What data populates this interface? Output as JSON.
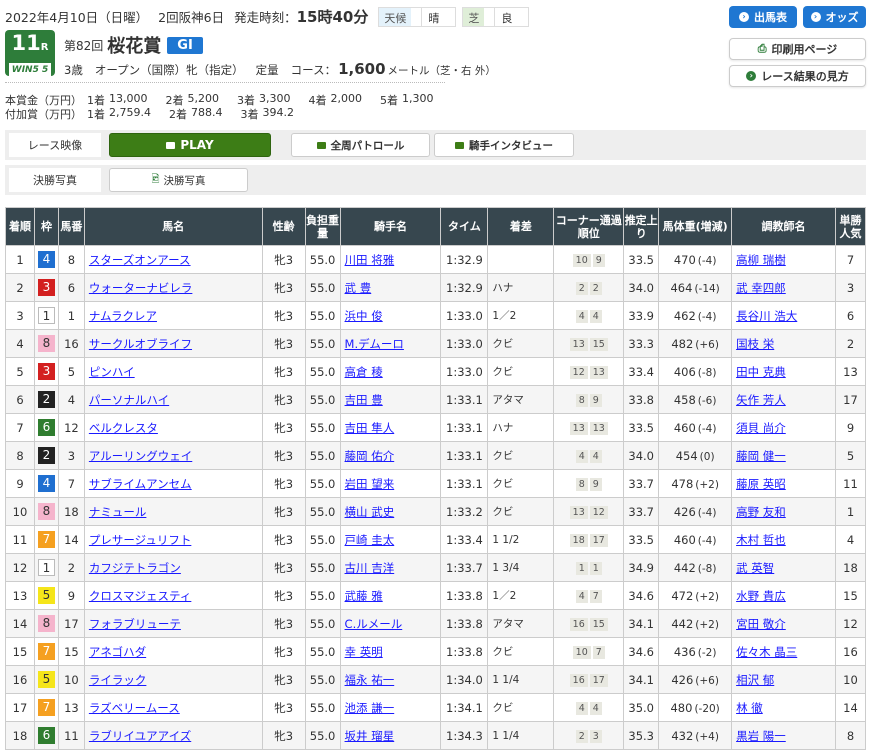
{
  "header": {
    "date": "2022年4月10日（日曜）",
    "meeting": "2回阪神6日",
    "start_label": "発走時刻：",
    "start_time": "15時40分",
    "weather_label": "天候",
    "weather": "晴",
    "track_label": "芝",
    "condition": "良"
  },
  "race": {
    "number": "11",
    "number_suffix": "R",
    "win5": "WIN5 5",
    "kai": "第82回",
    "name": "桜花賞",
    "grade": "GI",
    "age": "3歳",
    "class": "オープン（国際）牝（指定）",
    "weight_rule": "定量",
    "course_label": "コース：",
    "distance": "1,600",
    "distance_unit": "メートル（芝・右 外）"
  },
  "prize": {
    "main_label": "本賞金（万円）",
    "main": [
      [
        "1着",
        "13,000"
      ],
      [
        "2着",
        "5,200"
      ],
      [
        "3着",
        "3,300"
      ],
      [
        "4着",
        "2,000"
      ],
      [
        "5着",
        "1,300"
      ]
    ],
    "extra_label": "付加賞（万円）",
    "extra": [
      [
        "1着",
        "2,759.4"
      ],
      [
        "2着",
        "788.4"
      ],
      [
        "3着",
        "394.2"
      ]
    ]
  },
  "buttons": {
    "entries": "出馬表",
    "odds": "オッズ",
    "print": "印刷用ページ",
    "guide": "レース結果の見方"
  },
  "media": {
    "video_label": "レース映像",
    "play": "PLAY",
    "patrol": "全周パトロール",
    "interview": "騎手インタビュー",
    "photo_label": "決勝写真",
    "photo": "決勝写真"
  },
  "waku_colors": {
    "1": "#ffffff",
    "2": "#222222",
    "3": "#d32020",
    "4": "#1f6fd0",
    "5": "#f5e51a",
    "6": "#2f7d2f",
    "7": "#f5a020",
    "8": "#f5b4cc"
  },
  "columns": [
    "着順",
    "枠",
    "馬番",
    "馬名",
    "性齢",
    "負担重量",
    "騎手名",
    "タイム",
    "着差",
    "コーナー通過順位",
    "推定上り",
    "馬体重(増減)",
    "調教師名",
    "単勝人気"
  ],
  "rows": [
    [
      "1",
      "4",
      "8",
      "スターズオンアース",
      "牝3",
      "55.0",
      "川田 将雅",
      "1:32.9",
      "",
      "10 9",
      "33.5",
      "470",
      "(-4)",
      "高柳 瑞樹",
      "7"
    ],
    [
      "2",
      "3",
      "6",
      "ウォーターナビレラ",
      "牝3",
      "55.0",
      "武 豊",
      "1:32.9",
      "ハナ",
      "2 2",
      "34.0",
      "464",
      "(-14)",
      "武 幸四郎",
      "3"
    ],
    [
      "3",
      "1",
      "1",
      "ナムラクレア",
      "牝3",
      "55.0",
      "浜中 俊",
      "1:33.0",
      "1／2",
      "4 4",
      "33.9",
      "462",
      "(-4)",
      "長谷川 浩大",
      "6"
    ],
    [
      "4",
      "8",
      "16",
      "サークルオブライフ",
      "牝3",
      "55.0",
      "M.デムーロ",
      "1:33.0",
      "クビ",
      "13 15",
      "33.3",
      "482",
      "(+6)",
      "国枝 栄",
      "2"
    ],
    [
      "5",
      "3",
      "5",
      "ピンハイ",
      "牝3",
      "55.0",
      "高倉 稜",
      "1:33.0",
      "クビ",
      "12 13",
      "33.4",
      "406",
      "(-8)",
      "田中 克典",
      "13"
    ],
    [
      "6",
      "2",
      "4",
      "パーソナルハイ",
      "牝3",
      "55.0",
      "吉田 豊",
      "1:33.1",
      "アタマ",
      "8 9",
      "33.8",
      "458",
      "(-6)",
      "矢作 芳人",
      "17"
    ],
    [
      "7",
      "6",
      "12",
      "ベルクレスタ",
      "牝3",
      "55.0",
      "吉田 隼人",
      "1:33.1",
      "ハナ",
      "13 13",
      "33.5",
      "460",
      "(-4)",
      "須貝 尚介",
      "9"
    ],
    [
      "8",
      "2",
      "3",
      "アルーリングウェイ",
      "牝3",
      "55.0",
      "藤岡 佑介",
      "1:33.1",
      "クビ",
      "4 4",
      "34.0",
      "454",
      "(0)",
      "藤岡 健一",
      "5"
    ],
    [
      "9",
      "4",
      "7",
      "サブライムアンセム",
      "牝3",
      "55.0",
      "岩田 望来",
      "1:33.1",
      "クビ",
      "8 9",
      "33.7",
      "478",
      "(+2)",
      "藤原 英昭",
      "11"
    ],
    [
      "10",
      "8",
      "18",
      "ナミュール",
      "牝3",
      "55.0",
      "横山 武史",
      "1:33.2",
      "クビ",
      "13 12",
      "33.7",
      "426",
      "(-4)",
      "高野 友和",
      "1"
    ],
    [
      "11",
      "7",
      "14",
      "プレサージュリフト",
      "牝3",
      "55.0",
      "戸崎 圭太",
      "1:33.4",
      "1 1/2",
      "18 17",
      "33.5",
      "460",
      "(-4)",
      "木村 哲也",
      "4"
    ],
    [
      "12",
      "1",
      "2",
      "カフジテトラゴン",
      "牝3",
      "55.0",
      "古川 吉洋",
      "1:33.7",
      "1 3/4",
      "1 1",
      "34.9",
      "442",
      "(-8)",
      "武 英智",
      "18"
    ],
    [
      "13",
      "5",
      "9",
      "クロスマジェスティ",
      "牝3",
      "55.0",
      "武藤 雅",
      "1:33.8",
      "1／2",
      "4 7",
      "34.6",
      "472",
      "(+2)",
      "水野 貴広",
      "15"
    ],
    [
      "14",
      "8",
      "17",
      "フォラブリューテ",
      "牝3",
      "55.0",
      "C.ルメール",
      "1:33.8",
      "アタマ",
      "16 15",
      "34.1",
      "442",
      "(+2)",
      "宮田 敬介",
      "12"
    ],
    [
      "15",
      "7",
      "15",
      "アネゴハダ",
      "牝3",
      "55.0",
      "幸 英明",
      "1:33.8",
      "クビ",
      "10 7",
      "34.6",
      "436",
      "(-2)",
      "佐々木 晶三",
      "16"
    ],
    [
      "16",
      "5",
      "10",
      "ライラック",
      "牝3",
      "55.0",
      "福永 祐一",
      "1:34.0",
      "1 1/4",
      "16 17",
      "34.1",
      "426",
      "(+6)",
      "相沢 郁",
      "10"
    ],
    [
      "17",
      "7",
      "13",
      "ラズベリームース",
      "牝3",
      "55.0",
      "池添 謙一",
      "1:34.1",
      "クビ",
      "4 4",
      "35.0",
      "480",
      "(-20)",
      "林 徹",
      "14"
    ],
    [
      "18",
      "6",
      "11",
      "ラブリイユアアイズ",
      "牝3",
      "55.0",
      "坂井 瑠星",
      "1:34.3",
      "1 1/4",
      "2 3",
      "35.3",
      "432",
      "(+4)",
      "黒岩 陽一",
      "8"
    ]
  ]
}
